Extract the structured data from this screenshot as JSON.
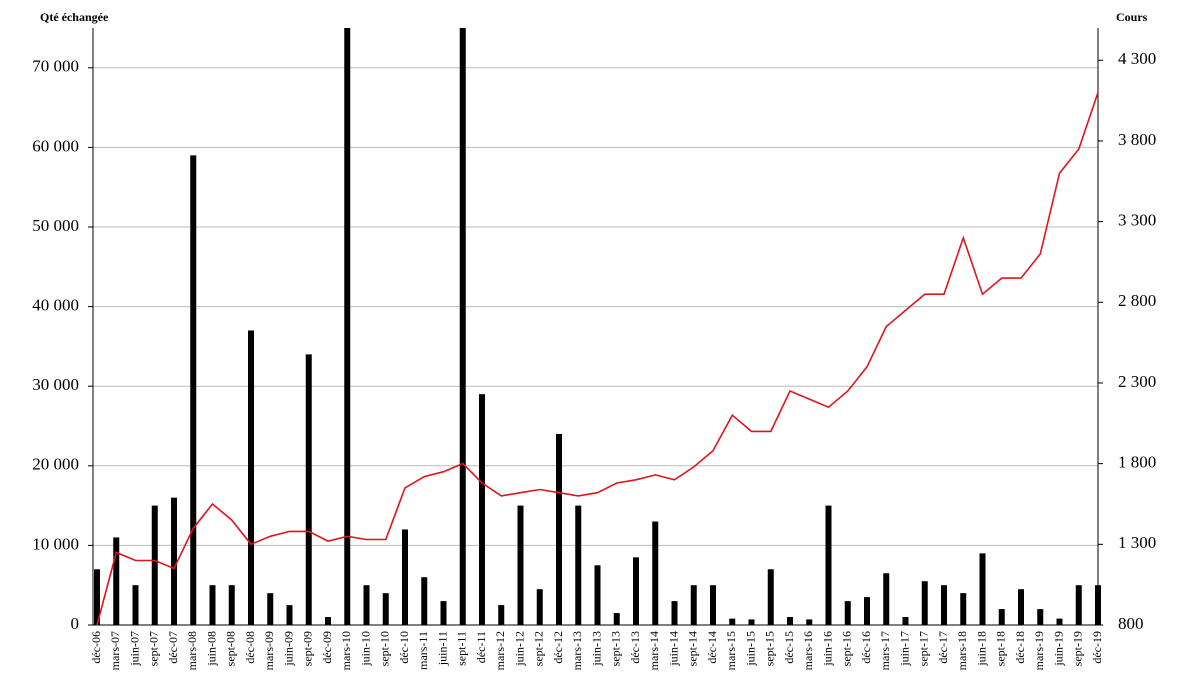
{
  "chart_data": {
    "type": "bar_line",
    "y_label": "Qté échangée",
    "y2_label": "Cours",
    "categories": [
      "déc-06",
      "mars-07",
      "juin-07",
      "sept-07",
      "déc-07",
      "mars-08",
      "juin-08",
      "sept-08",
      "déc-08",
      "mars-09",
      "juin-09",
      "sept-09",
      "déc-09",
      "mars-10",
      "juin-10",
      "sept-10",
      "déc-10",
      "mars-11",
      "juin-11",
      "sept-11",
      "déc-11",
      "mars-12",
      "juin-12",
      "sept-12",
      "déc-12",
      "mars-13",
      "juin-13",
      "sept-13",
      "déc-13",
      "mars-14",
      "juin-14",
      "sept-14",
      "déc-14",
      "mars-15",
      "juin-15",
      "sept-15",
      "déc-15",
      "mars-16",
      "juin-16",
      "sept-16",
      "déc-16",
      "mars-17",
      "juin-17",
      "sept-17",
      "déc-17",
      "mars-18",
      "juin-18",
      "sept-18",
      "déc-18",
      "mars-19",
      "juin-19",
      "sept-19",
      "déc-19"
    ],
    "series": [
      {
        "name": "Qté échangée",
        "type": "bar",
        "color": "#000000",
        "axis": "y",
        "values": [
          7000,
          11000,
          5000,
          15000,
          16000,
          59000,
          5000,
          5000,
          37000,
          4000,
          2500,
          34000,
          1000,
          75000,
          5000,
          4000,
          12000,
          6000,
          3000,
          75000,
          29000,
          2500,
          15000,
          4500,
          24000,
          15000,
          7500,
          1500,
          8500,
          13000,
          3000,
          5000,
          5000,
          800,
          700,
          7000,
          1000,
          700,
          15000,
          3000,
          3500,
          6500,
          1000,
          5500,
          5000,
          4000,
          9000,
          2000,
          4500,
          2000,
          800,
          5000,
          5000
        ]
      },
      {
        "name": "Cours",
        "type": "line",
        "color": "#e0141e",
        "axis": "y2",
        "values": [
          800,
          1250,
          1200,
          1200,
          1150,
          1400,
          1550,
          1450,
          1300,
          1350,
          1380,
          1380,
          1320,
          1350,
          1330,
          1330,
          1650,
          1720,
          1750,
          1800,
          1680,
          1600,
          1620,
          1640,
          1620,
          1600,
          1620,
          1680,
          1700,
          1730,
          1700,
          1780,
          1880,
          2100,
          2000,
          2000,
          2250,
          2200,
          2150,
          2250,
          2400,
          2650,
          2750,
          2850,
          2850,
          3200,
          2850,
          2950,
          2950,
          3100,
          3600,
          3750,
          4100
        ]
      }
    ],
    "ylim": [
      0,
      75000
    ],
    "yticks": [
      0,
      {
        "value": 10000,
        "label": "10 000"
      },
      {
        "value": 20000,
        "label": "20 000"
      },
      {
        "value": 30000,
        "label": "30 000"
      },
      {
        "value": 40000,
        "label": "40 000"
      },
      {
        "value": 50000,
        "label": "50 000"
      },
      {
        "value": 60000,
        "label": "60 000"
      },
      {
        "value": 70000,
        "label": "70 000"
      }
    ],
    "y2lim": [
      800,
      4500
    ],
    "y2ticks": [
      800,
      {
        "value": 1300,
        "label": "1 300"
      },
      {
        "value": 1800,
        "label": "1 800"
      },
      {
        "value": 2300,
        "label": "2 300"
      },
      {
        "value": 2800,
        "label": "2 800"
      },
      {
        "value": 3300,
        "label": "3 300"
      },
      {
        "value": 3800,
        "label": "3 800"
      },
      {
        "value": 4300,
        "label": "4 300"
      }
    ],
    "grid": true
  }
}
